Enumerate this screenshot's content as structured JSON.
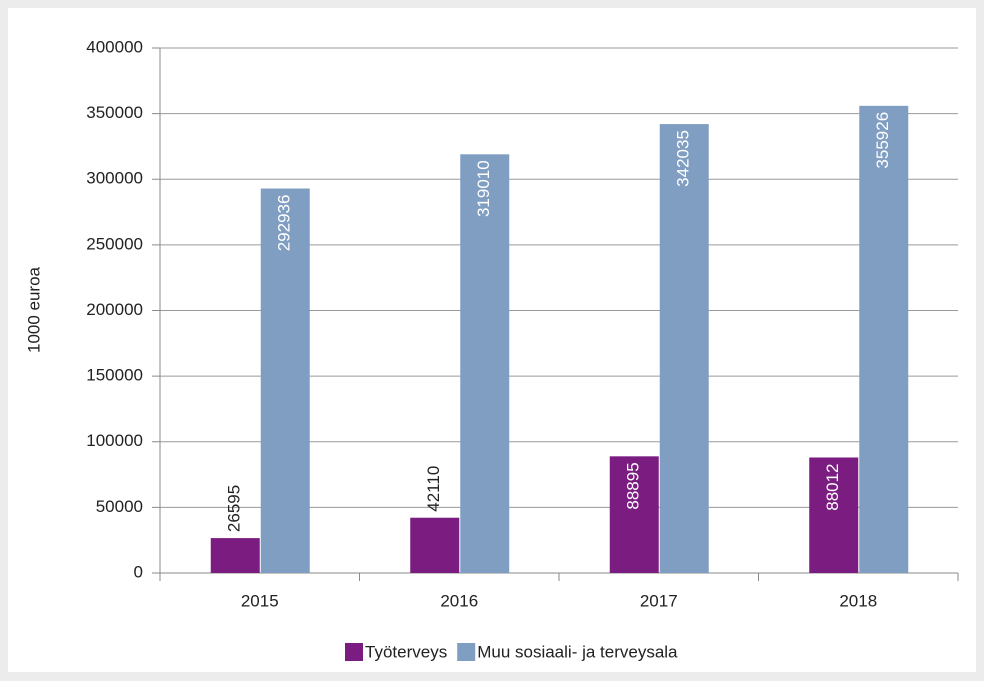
{
  "chart_data": {
    "type": "bar",
    "y_label": "1000 euroa",
    "categories": [
      "2015",
      "2016",
      "2017",
      "2018"
    ],
    "series": [
      {
        "name": "Työterveys",
        "color": "#7b1c80",
        "values": [
          26595,
          42110,
          88895,
          88012
        ]
      },
      {
        "name": "Muu sosiaali- ja terveysala",
        "color": "#809ec2",
        "values": [
          292936,
          319010,
          342035,
          355926
        ]
      }
    ],
    "ylim": [
      0,
      400000
    ],
    "yticks": [
      0,
      50000,
      100000,
      150000,
      200000,
      250000,
      300000,
      350000,
      400000
    ],
    "grid": true,
    "legend": "bottom"
  }
}
